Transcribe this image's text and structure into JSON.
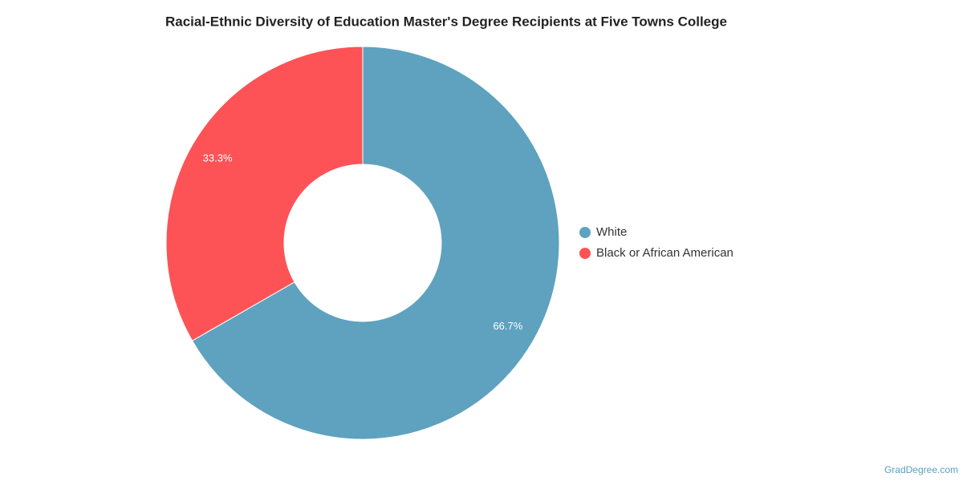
{
  "chart_data": {
    "type": "donut",
    "title": "Racial-Ethnic Diversity of Education Master's Degree Recipients at Five Towns College",
    "categories": [
      "White",
      "Black or African American"
    ],
    "values": [
      66.7,
      33.3
    ],
    "value_labels": [
      "66.7%",
      "33.3%"
    ],
    "colors": [
      "#5ea2bf",
      "#fd5356"
    ],
    "legend": "right",
    "credit": "GradDegree.com"
  }
}
